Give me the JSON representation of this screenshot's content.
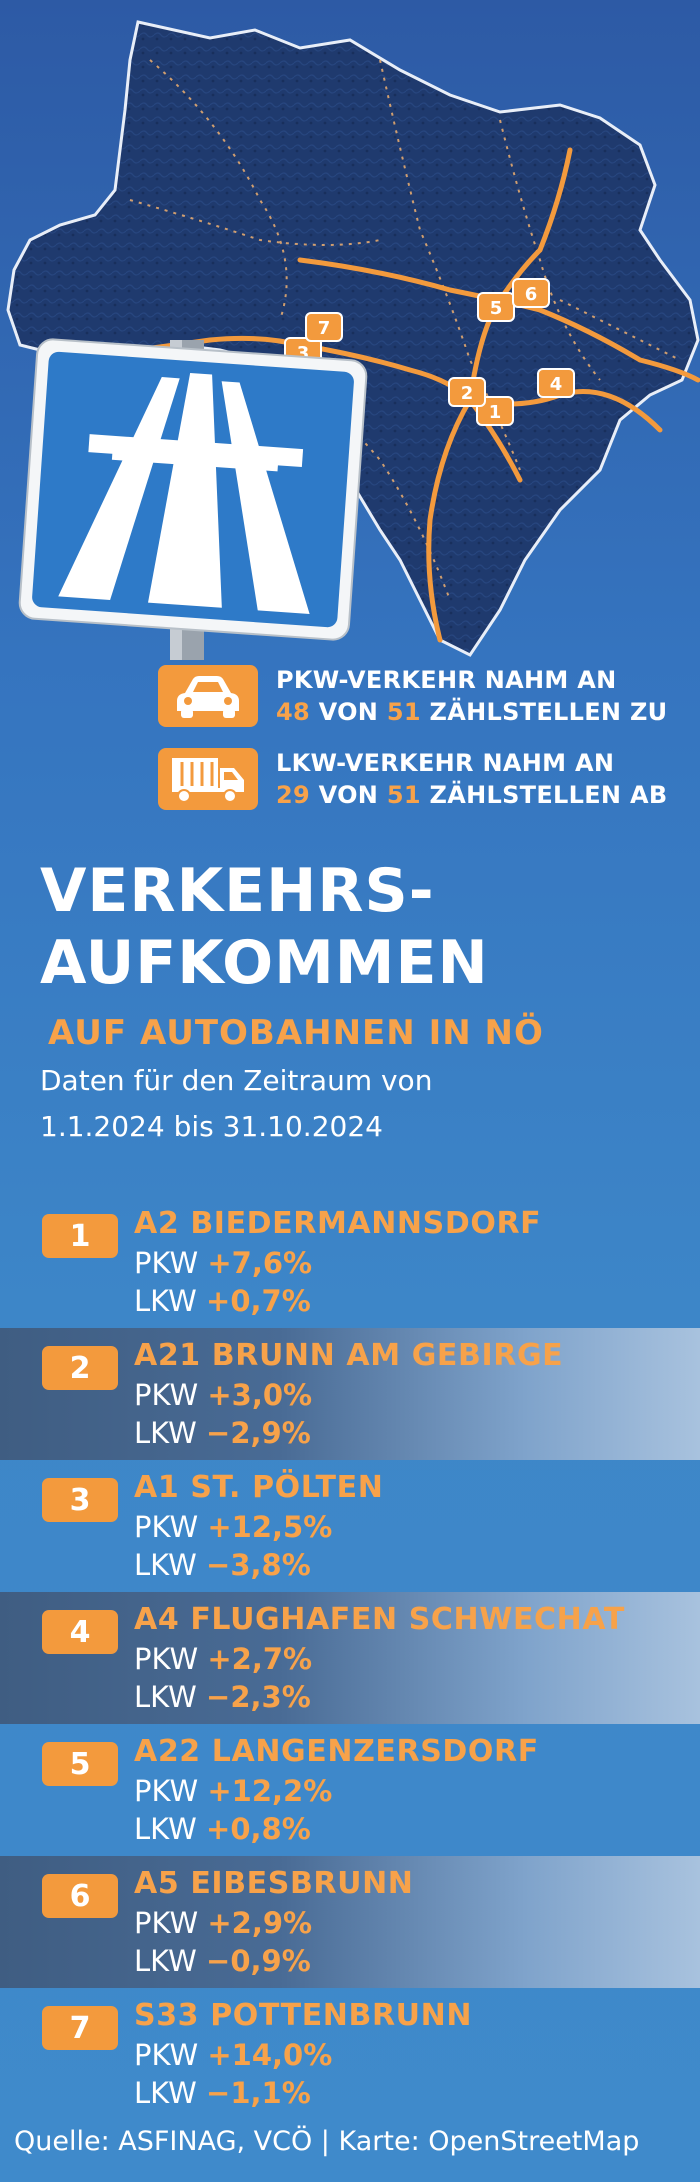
{
  "map": {
    "markers": [
      {
        "label": "1"
      },
      {
        "label": "2"
      },
      {
        "label": "3"
      },
      {
        "label": "4"
      },
      {
        "label": "5"
      },
      {
        "label": "6"
      },
      {
        "label": "7"
      }
    ],
    "sign_icon": "autobahn-sign-icon",
    "colors": {
      "region": "#1e3768",
      "roads": "#f39a3d",
      "sign": "#2e7ac8"
    }
  },
  "stats": [
    {
      "icon": "car-icon",
      "line1": "PKW-VERKEHR NAHM AN",
      "num1": "48",
      "mid": " VON ",
      "num2": "51",
      "tail": " ZÄHLSTELLEN ZU"
    },
    {
      "icon": "truck-icon",
      "line1": "LKW-VERKEHR NAHM AN",
      "num1": "29",
      "mid": " VON ",
      "num2": "51",
      "tail": " ZÄHLSTELLEN AB"
    }
  ],
  "title": {
    "line1": "VERKEHRS-",
    "line2": "AUFKOMMEN",
    "subtitle": "AUF AUTOBAHNEN IN NÖ",
    "period_label": "Daten für den Zeitraum von",
    "period_dates": "1.1.2024 bis 31.10.2024"
  },
  "locations": [
    {
      "num": "1",
      "name": "A2 BIEDERMANNSDORF",
      "pkw_label": "PKW",
      "pkw": "+7,6%",
      "lkw_label": "LKW",
      "lkw": "+0,7%"
    },
    {
      "num": "2",
      "name": "A21 BRUNN AM GEBIRGE",
      "pkw_label": "PKW",
      "pkw": "+3,0%",
      "lkw_label": "LKW",
      "lkw": "−2,9%"
    },
    {
      "num": "3",
      "name": "A1 ST. PÖLTEN",
      "pkw_label": "PKW",
      "pkw": "+12,5%",
      "lkw_label": "LKW",
      "lkw": "−3,8%"
    },
    {
      "num": "4",
      "name": "A4 FLUGHAFEN SCHWECHAT",
      "pkw_label": "PKW",
      "pkw": "+2,7%",
      "lkw_label": "LKW",
      "lkw": "−2,3%"
    },
    {
      "num": "5",
      "name": "A22 LANGENZERSDORF",
      "pkw_label": "PKW",
      "pkw": "+12,2%",
      "lkw_label": "LKW",
      "lkw": "+0,8%"
    },
    {
      "num": "6",
      "name": "A5 EIBESBRUNN",
      "pkw_label": "PKW",
      "pkw": "+2,9%",
      "lkw_label": "LKW",
      "lkw": "−0,9%"
    },
    {
      "num": "7",
      "name": "S33 POTTENBRUNN",
      "pkw_label": "PKW",
      "pkw": "+14,0%",
      "lkw_label": "LKW",
      "lkw": "−1,1%"
    }
  ],
  "footer": "Quelle: ASFINAG, VCÖ | Karte: OpenStreetMap"
}
